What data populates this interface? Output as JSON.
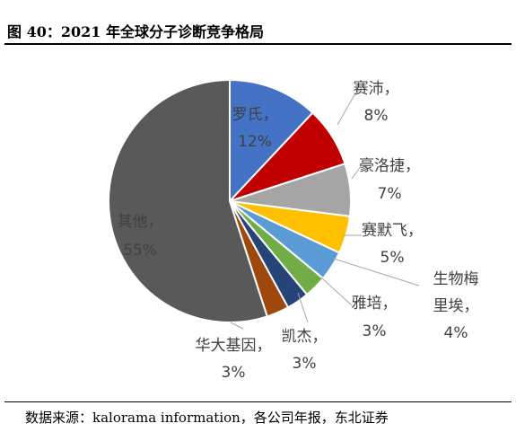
{
  "figure_title": "图 40：2021 年全球分子诊断竞争格局",
  "source": "数据来源：kalorama information，各公司年报，东北证券",
  "chart_data": {
    "type": "pie",
    "title": "",
    "slices": [
      {
        "name": "罗氏",
        "value": 12,
        "value_label": "12%",
        "color": "#4472C4"
      },
      {
        "name": "赛沛",
        "value": 8,
        "value_label": "8%",
        "color": "#C00000"
      },
      {
        "name": "豪洛捷",
        "value": 7,
        "value_label": "7%",
        "color": "#A5A5A5"
      },
      {
        "name": "赛默飞",
        "value": 5,
        "value_label": "5%",
        "color": "#FFC000"
      },
      {
        "name": "生物梅里埃",
        "value": 4,
        "value_label": "4%",
        "color": "#5B9BD5"
      },
      {
        "name": "雅培",
        "value": 3,
        "value_label": "3%",
        "color": "#70AD47"
      },
      {
        "name": "凯杰",
        "value": 3,
        "value_label": "3%",
        "color": "#264478"
      },
      {
        "name": "华大基因",
        "value": 3,
        "value_label": "3%",
        "color": "#9E480E"
      },
      {
        "name": "其他",
        "value": 55,
        "value_label": "55%",
        "color": "#595959"
      }
    ]
  }
}
